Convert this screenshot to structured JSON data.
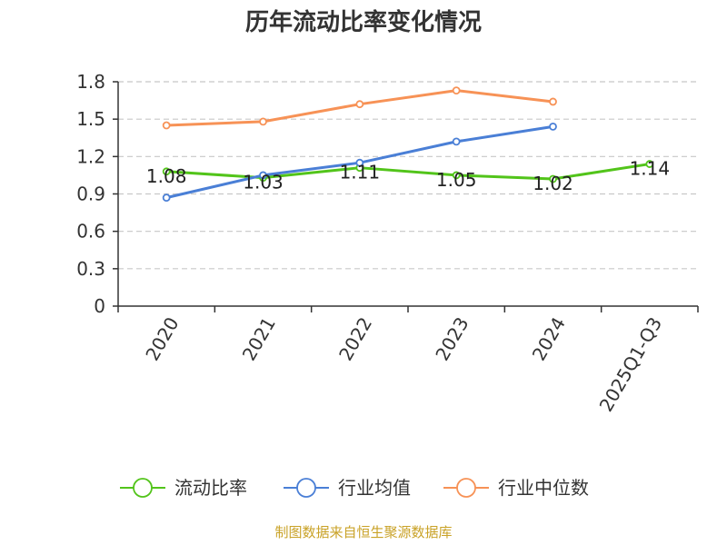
{
  "chart_data": {
    "type": "line",
    "title": "历年流动比率变化情况",
    "categories": [
      "2020",
      "2021",
      "2022",
      "2023",
      "2024",
      "2025Q1-Q3"
    ],
    "series": [
      {
        "name": "流动比率",
        "color": "#52c41a",
        "values": [
          1.08,
          1.03,
          1.11,
          1.05,
          1.02,
          1.14
        ],
        "show_labels": true
      },
      {
        "name": "行业均值",
        "color": "#4a7fd6",
        "values": [
          0.87,
          1.05,
          1.15,
          1.32,
          1.44,
          null
        ],
        "show_labels": false
      },
      {
        "name": "行业中位数",
        "color": "#f79256",
        "values": [
          1.45,
          1.48,
          1.62,
          1.73,
          1.64,
          null
        ],
        "show_labels": false
      }
    ],
    "yticks": [
      0,
      0.3,
      0.6,
      0.9,
      1.2,
      1.5,
      1.8
    ],
    "ytick_labels": [
      "0",
      "0.3",
      "0.6",
      "0.9",
      "1.2",
      "1.5",
      "1.8"
    ],
    "ylim": [
      0,
      1.8
    ],
    "grid": true,
    "legend_position": "bottom",
    "source": "制图数据来自恒生聚源数据库"
  }
}
